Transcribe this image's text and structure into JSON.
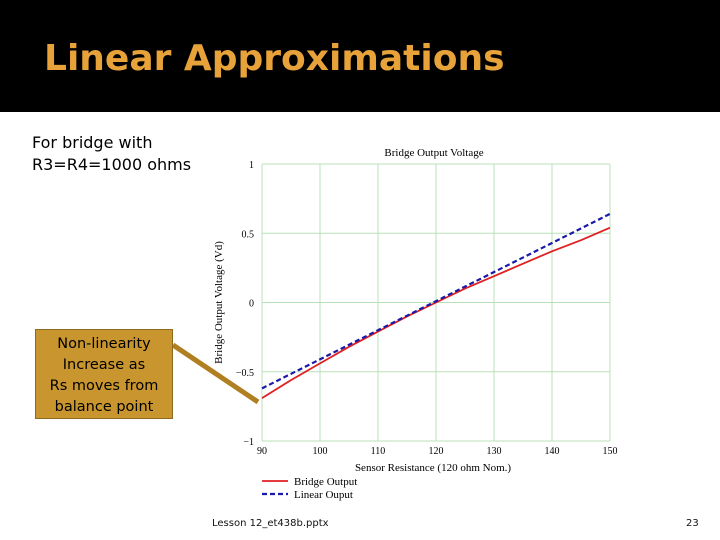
{
  "slide": {
    "title": "Linear Approximations",
    "note_lines": [
      "For bridge with",
      "R3=R4=1000 ohms"
    ],
    "callout_lines": [
      "Non-linearity",
      "Increase  as",
      "Rs moves from",
      "balance point"
    ],
    "footer": "Lesson 12_et438b.pptx",
    "page_number": "23"
  },
  "colors": {
    "title": "#e8a23a",
    "title_bar": "#000000",
    "callout_fill": "#c8952e",
    "bridge_output": "#e02020",
    "linear_output": "#1a1aa8",
    "grid": "#b8e0b8"
  },
  "chart_data": {
    "type": "line",
    "title": "Bridge Output Voltage",
    "xlabel": "Sensor Resistance (120 ohm Nom.)",
    "ylabel": "Bridge Output Voltage (Vd)",
    "xlim": [
      90,
      150
    ],
    "ylim": [
      -1,
      1
    ],
    "x_ticks": [
      "90",
      "100",
      "110",
      "120",
      "130",
      "140",
      "150"
    ],
    "y_ticks": [
      "1",
      "0.5",
      "0",
      "-0.5",
      "-1"
    ],
    "grid": true,
    "legend_position": "bottom-left",
    "series": [
      {
        "name": "Bridge Output",
        "style": "solid",
        "x": [
          90,
          95,
          100,
          105,
          110,
          115,
          120,
          125,
          130,
          135,
          140,
          145,
          150
        ],
        "y": [
          -0.69,
          -0.56,
          -0.44,
          -0.32,
          -0.21,
          -0.1,
          0.0,
          0.1,
          0.19,
          0.28,
          0.37,
          0.45,
          0.54
        ]
      },
      {
        "name": "Linear Ouput",
        "style": "dashed",
        "x": [
          90,
          150
        ],
        "y": [
          -0.62,
          0.64
        ]
      }
    ]
  }
}
